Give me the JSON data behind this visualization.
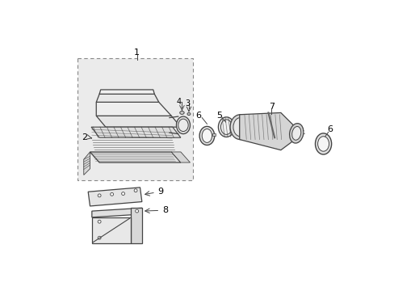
{
  "white": "#ffffff",
  "black": "#000000",
  "dark": "#444444",
  "mid": "#888888",
  "light_fill": "#f5f5f5",
  "box_fill": "#ebebeb",
  "part_fill": "#e8e8e8"
}
